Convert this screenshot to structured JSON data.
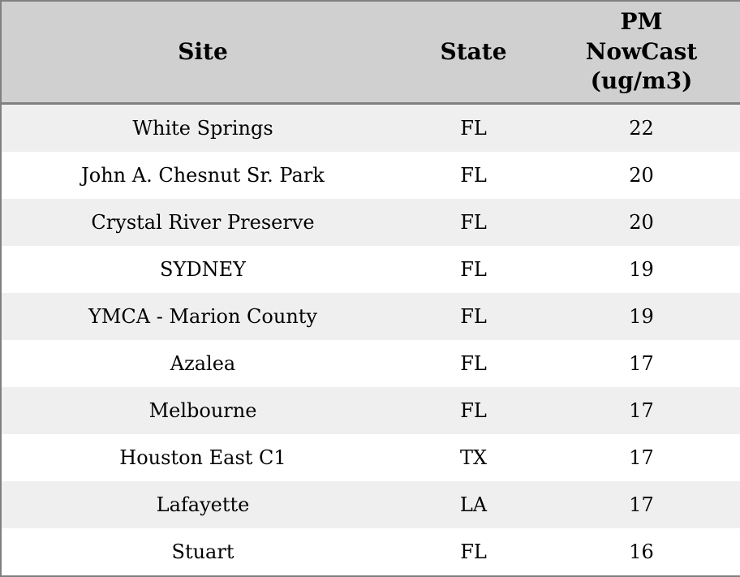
{
  "chart_data": {
    "type": "table",
    "title": "",
    "columns": [
      "Site",
      "State",
      "PM NowCast (ug/m3)"
    ],
    "rows": [
      [
        "White Springs",
        "FL",
        22
      ],
      [
        "John A. Chesnut Sr. Park",
        "FL",
        20
      ],
      [
        "Crystal River Preserve",
        "FL",
        20
      ],
      [
        "SYDNEY",
        "FL",
        19
      ],
      [
        "YMCA - Marion County",
        "FL",
        19
      ],
      [
        "Azalea",
        "FL",
        17
      ],
      [
        "Melbourne",
        "FL",
        17
      ],
      [
        "Houston East C1",
        "TX",
        17
      ],
      [
        "Lafayette",
        "LA",
        17
      ],
      [
        "Stuart",
        "FL",
        16
      ]
    ],
    "layout": {
      "striped_rows": true,
      "text_align": "center"
    }
  },
  "colors": {
    "header_bg": "#d0d0d0",
    "row_alt_bg": "#efefef",
    "row_bg": "#ffffff",
    "border": "#808080",
    "text": "#000000"
  }
}
